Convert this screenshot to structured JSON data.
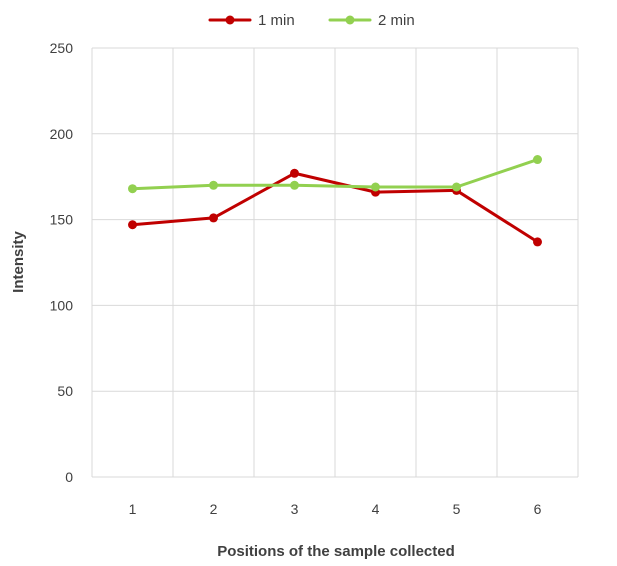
{
  "chart_data": {
    "type": "line",
    "title": "",
    "xlabel": "Positions of the sample collected",
    "ylabel": "Intensity",
    "categories": [
      "1",
      "2",
      "3",
      "4",
      "5",
      "6"
    ],
    "ylim": [
      0,
      250
    ],
    "yticks": [
      0,
      50,
      100,
      150,
      200,
      250
    ],
    "grid": true,
    "legend_position": "top-center",
    "series": [
      {
        "name": "1 min",
        "color": "#c00000",
        "values": [
          147,
          151,
          177,
          166,
          167,
          137
        ]
      },
      {
        "name": "2 min",
        "color": "#92d050",
        "values": [
          168,
          170,
          170,
          169,
          169,
          185
        ]
      }
    ]
  }
}
